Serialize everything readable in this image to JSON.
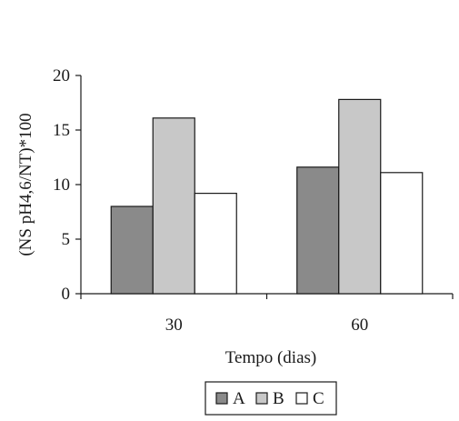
{
  "chart_data": {
    "type": "bar",
    "categories": [
      "30",
      "60"
    ],
    "series": [
      {
        "name": "A",
        "values": [
          8.0,
          11.6
        ],
        "color": "#8a8a8a"
      },
      {
        "name": "B",
        "values": [
          16.1,
          17.8
        ],
        "color": "#c8c8c8"
      },
      {
        "name": "C",
        "values": [
          9.2,
          11.1
        ],
        "color": "#ffffff"
      }
    ],
    "title": "",
    "xlabel": "Tempo (dias)",
    "ylabel": "(NS pH4,6/NT)*100",
    "ylim": [
      0,
      20
    ],
    "yticks": [
      "0",
      "5",
      "10",
      "15",
      "20"
    ],
    "grid": false,
    "legend": "bottom-center"
  }
}
